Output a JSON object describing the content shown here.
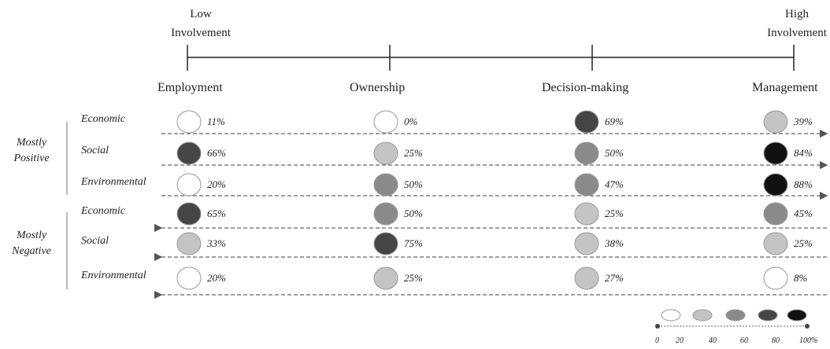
{
  "axis": {
    "low": "Low Involvement",
    "high": "High Involvement"
  },
  "columns": [
    "Employment",
    "Ownership",
    "Decision-making",
    "Management"
  ],
  "groups": [
    {
      "label": "Mostly Positive",
      "rows": [
        {
          "label": "Economic",
          "cells": [
            {
              "value": 11,
              "label": "11%"
            },
            {
              "value": 0,
              "label": "0%"
            },
            {
              "value": 69,
              "label": "69%"
            },
            {
              "value": 39,
              "label": "39%"
            }
          ]
        },
        {
          "label": "Social",
          "cells": [
            {
              "value": 66,
              "label": "66%"
            },
            {
              "value": 25,
              "label": "25%"
            },
            {
              "value": 50,
              "label": "50%"
            },
            {
              "value": 84,
              "label": "84%"
            }
          ]
        },
        {
          "label": "Environmental",
          "cells": [
            {
              "value": 20,
              "label": "20%"
            },
            {
              "value": 50,
              "label": "50%"
            },
            {
              "value": 47,
              "label": "47%"
            },
            {
              "value": 88,
              "label": "88%"
            }
          ]
        }
      ]
    },
    {
      "label": "Mostly Negative",
      "rows": [
        {
          "label": "Economic",
          "cells": [
            {
              "value": 65,
              "label": "65%"
            },
            {
              "value": 50,
              "label": "50%"
            },
            {
              "value": 25,
              "label": "25%"
            },
            {
              "value": 45,
              "label": "45%"
            }
          ]
        },
        {
          "label": "Social",
          "cells": [
            {
              "value": 33,
              "label": "33%"
            },
            {
              "value": 75,
              "label": "75%"
            },
            {
              "value": 38,
              "label": "38%"
            },
            {
              "value": 25,
              "label": "25%"
            }
          ]
        },
        {
          "label": "Environmental",
          "cells": [
            {
              "value": 20,
              "label": "20%"
            },
            {
              "value": 25,
              "label": "25%"
            },
            {
              "value": 27,
              "label": "27%"
            },
            {
              "value": 8,
              "label": "8%"
            }
          ]
        }
      ]
    }
  ],
  "legend": {
    "colors": [
      "#ffffff",
      "#c4c4c4",
      "#8a8a8a",
      "#454545",
      "#111111"
    ],
    "ticks": [
      0,
      20,
      40,
      60,
      80,
      {
        "value": 100,
        "label": "100%"
      }
    ]
  }
}
